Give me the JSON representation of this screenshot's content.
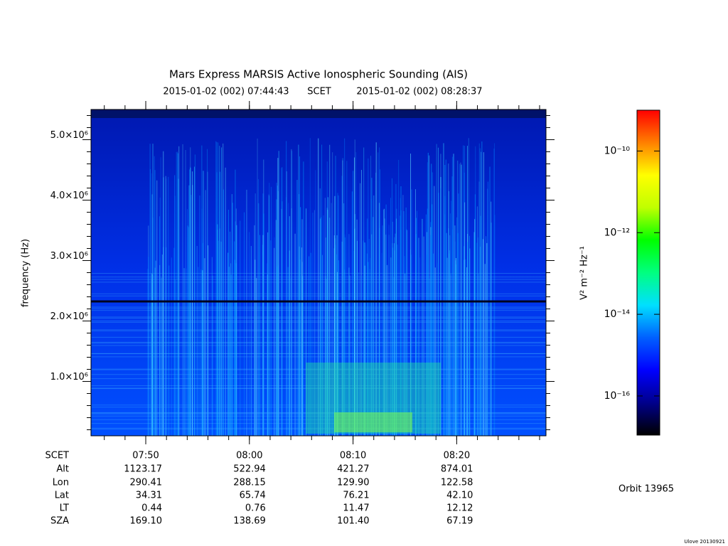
{
  "chart_data": {
    "type": "spectrogram",
    "title": "Mars Express MARSIS Active Ionospheric Sounding (AIS)",
    "time_range": {
      "start": "2015-01-02 (002) 07:44:43",
      "label": "SCET",
      "end": "2015-01-02 (002) 08:28:37"
    },
    "ylabel": "frequency (Hz)",
    "ylim": [
      100000,
      5500000
    ],
    "yticks": [
      {
        "value": 1000000,
        "label": "1.0×10⁶"
      },
      {
        "value": 2000000,
        "label": "2.0×10⁶"
      },
      {
        "value": 3000000,
        "label": "3.0×10⁶"
      },
      {
        "value": 4000000,
        "label": "4.0×10⁶"
      },
      {
        "value": 5000000,
        "label": "5.0×10⁶"
      }
    ],
    "xlim": [
      "2015-01-02T07:44:43",
      "2015-01-02T08:28:37"
    ],
    "xticks": [
      {
        "value": "2015-01-02T07:50:00",
        "label": "07:50"
      },
      {
        "value": "2015-01-02T08:00:00",
        "label": "08:00"
      },
      {
        "value": "2015-01-02T08:10:00",
        "label": "08:10"
      },
      {
        "value": "2015-01-02T08:20:00",
        "label": "08:20"
      }
    ],
    "xtick_row_label": "SCET",
    "ephemeris": [
      {
        "name": "Alt",
        "values": [
          "1123.17",
          "522.94",
          "421.27",
          "874.01"
        ]
      },
      {
        "name": "Lon",
        "values": [
          "290.41",
          "288.15",
          "129.90",
          "122.58"
        ]
      },
      {
        "name": "Lat",
        "values": [
          "34.31",
          "65.74",
          "76.21",
          "42.10"
        ]
      },
      {
        "name": "LT",
        "values": [
          "0.44",
          "0.76",
          "11.47",
          "12.12"
        ]
      },
      {
        "name": "SZA",
        "values": [
          "169.10",
          "138.69",
          "101.40",
          "67.19"
        ]
      }
    ],
    "colorbar": {
      "label": "V² m⁻² Hz⁻¹",
      "log_scale": true,
      "zlim": [
        1e-09,
        1.1e-17
      ],
      "zticks": [
        {
          "value": 1e-10,
          "label": "10⁻¹⁰"
        },
        {
          "value": 1e-12,
          "label": "10⁻¹²"
        },
        {
          "value": 1e-14,
          "label": "10⁻¹⁴"
        },
        {
          "value": 1e-16,
          "label": "10⁻¹⁶"
        }
      ],
      "colormap": [
        "#000000",
        "#00008c",
        "#0000ff",
        "#0060ff",
        "#00e0ff",
        "#00ff80",
        "#00ff00",
        "#c0ff00",
        "#ffff00",
        "#ff8000",
        "#ff0000"
      ]
    },
    "orbit": "Orbit 13965",
    "version": "Ulove 20130921"
  }
}
